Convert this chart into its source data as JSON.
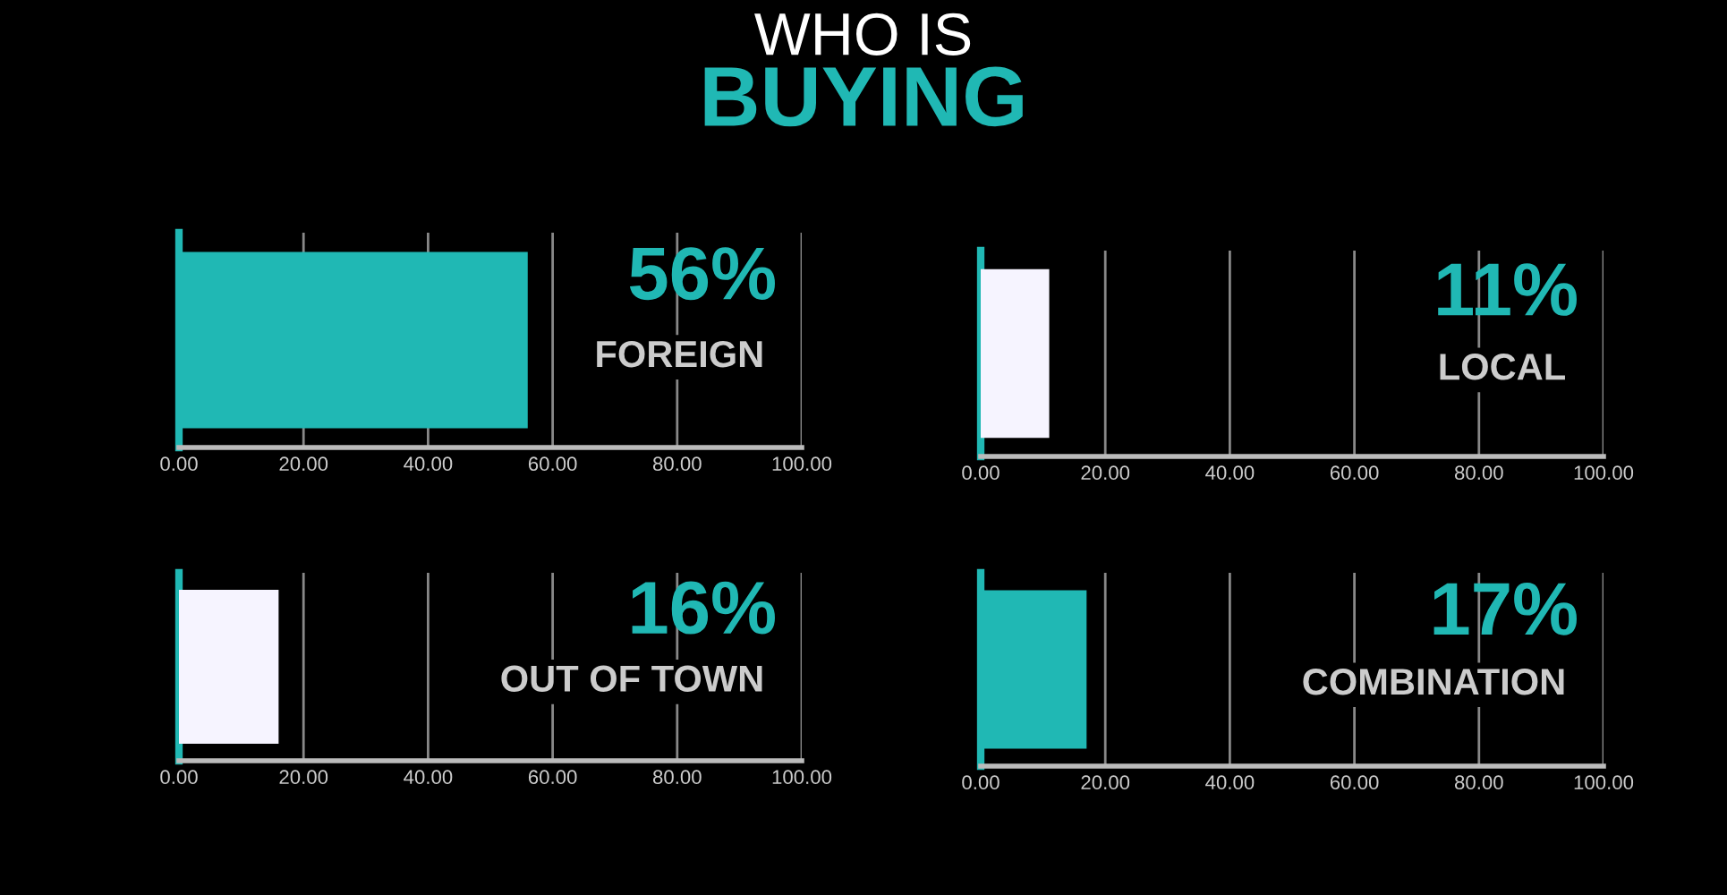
{
  "chart_data": [
    {
      "type": "bar",
      "orientation": "horizontal",
      "title": "WHO IS",
      "subtitle": "BUYING",
      "categories": [
        "FOREIGN"
      ],
      "values": [
        56
      ],
      "annotations": [
        "56%"
      ],
      "color": "#20b8b4",
      "xlim": [
        0,
        100
      ],
      "xticks": [
        {
          "value": 0,
          "label": "0.00"
        },
        {
          "value": 20,
          "label": "20.00"
        },
        {
          "value": 40,
          "label": "40.00"
        },
        {
          "value": 60,
          "label": "60.00"
        },
        {
          "value": 80,
          "label": "80.00"
        },
        {
          "value": 100,
          "label": "100.00"
        }
      ],
      "grid": "x",
      "tick_labels": "x"
    },
    {
      "type": "bar",
      "orientation": "horizontal",
      "categories": [
        "LOCAL"
      ],
      "values": [
        11
      ],
      "annotations": [
        "11%"
      ],
      "color": "#f6f4ff",
      "xlim": [
        0,
        100
      ],
      "xticks": [
        {
          "value": 0,
          "label": "0.00"
        },
        {
          "value": 20,
          "label": "20.00"
        },
        {
          "value": 40,
          "label": "40.00"
        },
        {
          "value": 60,
          "label": "60.00"
        },
        {
          "value": 80,
          "label": "80.00"
        },
        {
          "value": 100,
          "label": "100.00"
        }
      ],
      "grid": "x",
      "tick_labels": "x"
    },
    {
      "type": "bar",
      "orientation": "horizontal",
      "categories": [
        "OUT OF TOWN"
      ],
      "values": [
        16
      ],
      "annotations": [
        "16%"
      ],
      "color": "#f6f4ff",
      "xlim": [
        0,
        100
      ],
      "xticks": [
        {
          "value": 0,
          "label": "0.00"
        },
        {
          "value": 20,
          "label": "20.00"
        },
        {
          "value": 40,
          "label": "40.00"
        },
        {
          "value": 60,
          "label": "60.00"
        },
        {
          "value": 80,
          "label": "80.00"
        },
        {
          "value": 100,
          "label": "100.00"
        }
      ],
      "grid": "x",
      "tick_labels": "x"
    },
    {
      "type": "bar",
      "orientation": "horizontal",
      "categories": [
        "COMBINATION"
      ],
      "values": [
        17
      ],
      "annotations": [
        "17%"
      ],
      "color": "#20b8b4",
      "xlim": [
        0,
        100
      ],
      "xticks": [
        {
          "value": 0,
          "label": "0.00"
        },
        {
          "value": 20,
          "label": "20.00"
        },
        {
          "value": 40,
          "label": "40.00"
        },
        {
          "value": 60,
          "label": "60.00"
        },
        {
          "value": 80,
          "label": "80.00"
        },
        {
          "value": 100,
          "label": "100.00"
        }
      ],
      "grid": "x",
      "tick_labels": "x"
    }
  ]
}
